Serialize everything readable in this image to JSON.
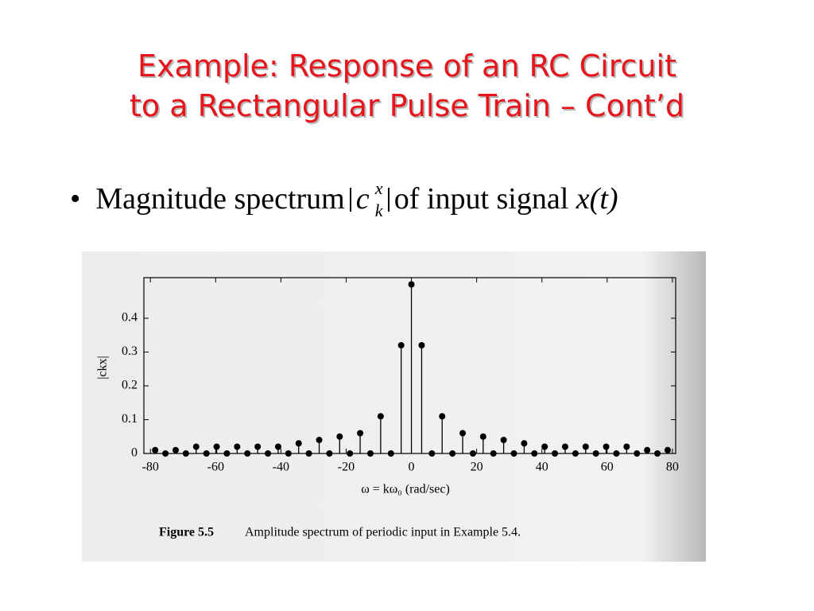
{
  "header": {
    "title_lines": [
      "Example: Response of an RC Circuit",
      "to a Rectangular Pulse Train – Cont’d"
    ]
  },
  "bullet": {
    "lead": "Magnitude spectrum",
    "symbol": "c",
    "sup": "x",
    "sub": "k",
    "tail": "of input signal",
    "signal": "x(t)"
  },
  "chart_data": {
    "type": "stem",
    "ylabel": "|ckx|",
    "xlabel": "ω = kω₀ (rad/sec)",
    "caption_label": "Figure 5.5",
    "caption": "Amplitude spectrum of periodic input in Example 5.4.",
    "x": [
      -78.54,
      -75.4,
      -72.26,
      -69.12,
      -65.97,
      -62.83,
      -59.69,
      -56.55,
      -53.41,
      -50.27,
      -47.12,
      -43.98,
      -40.84,
      -37.7,
      -34.56,
      -31.42,
      -28.27,
      -25.13,
      -21.99,
      -18.85,
      -15.71,
      -12.57,
      -9.42,
      -6.28,
      -3.14,
      0,
      3.14,
      6.28,
      9.42,
      12.57,
      15.71,
      18.85,
      21.99,
      25.13,
      28.27,
      31.42,
      34.56,
      37.7,
      40.84,
      43.98,
      47.12,
      50.27,
      53.41,
      56.55,
      59.69,
      62.83,
      65.97,
      69.12,
      72.26,
      75.4,
      78.54
    ],
    "values": [
      0.01,
      0,
      0.01,
      0,
      0.02,
      0,
      0.02,
      0,
      0.02,
      0,
      0.02,
      0,
      0.02,
      0,
      0.03,
      0,
      0.04,
      0,
      0.05,
      0,
      0.06,
      0,
      0.11,
      0,
      0.32,
      0.5,
      0.32,
      0,
      0.11,
      0,
      0.06,
      0,
      0.05,
      0,
      0.04,
      0,
      0.03,
      0,
      0.02,
      0,
      0.02,
      0,
      0.02,
      0,
      0.02,
      0,
      0.02,
      0,
      0.01,
      0,
      0.01
    ],
    "color": "#000000",
    "xlim": [
      -82,
      81
    ],
    "ylim": [
      0,
      0.52
    ],
    "xticks": [
      -80,
      -60,
      -40,
      -20,
      0,
      20,
      40,
      60,
      80
    ],
    "yticks": [
      0,
      0.1,
      0.2,
      0.3,
      0.4
    ]
  }
}
